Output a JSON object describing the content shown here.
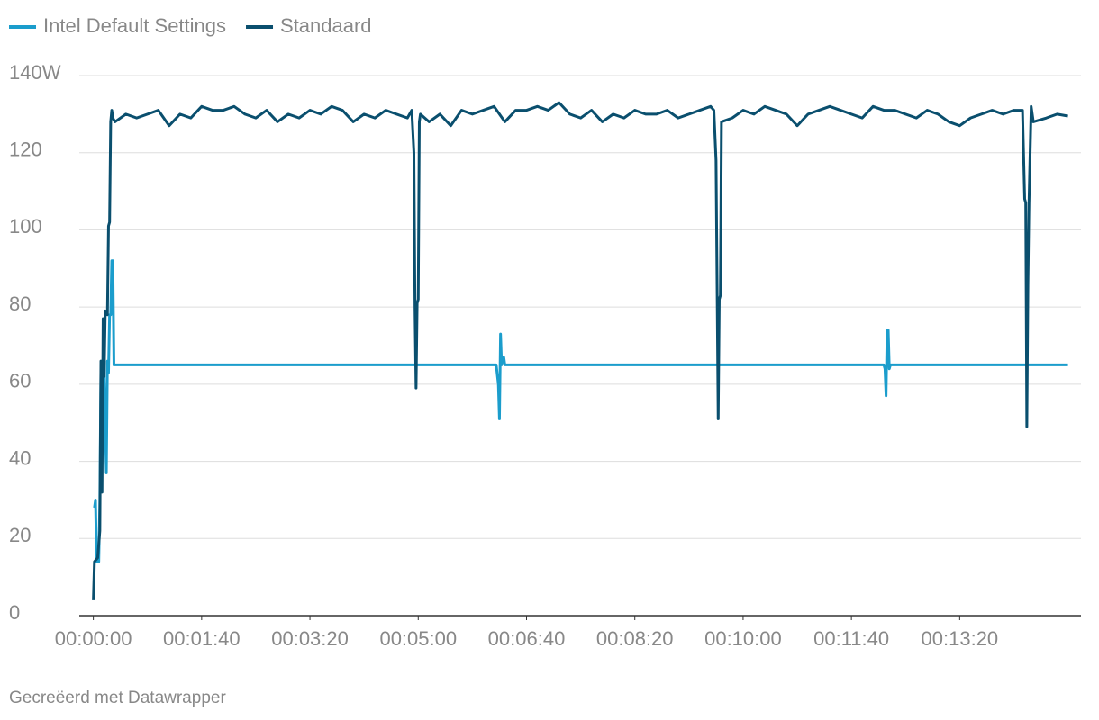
{
  "chart_data": {
    "type": "line",
    "footer": "Gecreëerd met Datawrapper",
    "legend": "top-left",
    "grid": true,
    "xlim": [
      -13,
      912
    ],
    "ylim": [
      0,
      140
    ],
    "xticks": [
      {
        "value": 0,
        "label": "00:00:00"
      },
      {
        "value": 100,
        "label": "00:01:40"
      },
      {
        "value": 200,
        "label": "00:03:20"
      },
      {
        "value": 300,
        "label": "00:05:00"
      },
      {
        "value": 400,
        "label": "00:06:40"
      },
      {
        "value": 500,
        "label": "00:08:20"
      },
      {
        "value": 600,
        "label": "00:10:00"
      },
      {
        "value": 700,
        "label": "00:11:40"
      },
      {
        "value": 800,
        "label": "00:13:20"
      }
    ],
    "yticks": [
      0,
      20,
      40,
      60,
      80,
      100,
      120,
      {
        "value": 140,
        "label": "140W"
      }
    ],
    "series": [
      {
        "name": "Intel Default Settings",
        "color": "#1b9dcc",
        "x": [
          1,
          2,
          3,
          5,
          6,
          7,
          8,
          10,
          12,
          13,
          14,
          15,
          16,
          17,
          18,
          19,
          100,
          200,
          300,
          372,
          374,
          375,
          376,
          377,
          378,
          379,
          380,
          500,
          600,
          730,
          731,
          732,
          733,
          734,
          735,
          736,
          800,
          900
        ],
        "values": [
          28,
          30,
          14,
          14,
          30,
          64,
          48,
          62,
          37,
          66,
          63,
          78,
          78,
          92,
          92,
          65,
          65,
          65,
          65,
          65,
          60,
          51,
          73,
          65,
          67,
          67,
          65,
          65,
          65,
          65,
          64,
          57,
          74,
          74,
          64,
          65,
          65,
          65
        ]
      },
      {
        "name": "Standaard",
        "color": "#0a4f6e",
        "x": [
          0,
          1,
          4,
          6,
          7,
          8,
          9,
          10,
          11,
          13,
          14,
          15,
          16,
          17,
          18,
          20,
          30,
          40,
          50,
          60,
          70,
          80,
          90,
          100,
          110,
          120,
          130,
          140,
          150,
          160,
          170,
          180,
          190,
          200,
          210,
          220,
          230,
          240,
          250,
          260,
          270,
          280,
          290,
          294,
          296,
          297,
          298,
          299,
          300,
          301,
          302,
          310,
          320,
          330,
          340,
          350,
          360,
          370,
          380,
          390,
          400,
          410,
          420,
          430,
          440,
          450,
          460,
          470,
          480,
          490,
          500,
          510,
          520,
          530,
          540,
          550,
          560,
          570,
          573,
          575,
          577,
          578,
          579,
          580,
          590,
          600,
          610,
          620,
          630,
          640,
          650,
          660,
          670,
          680,
          690,
          700,
          710,
          720,
          730,
          740,
          750,
          760,
          770,
          780,
          790,
          800,
          810,
          820,
          830,
          840,
          850,
          858,
          860,
          861,
          862,
          863,
          864,
          866,
          868,
          880,
          890,
          900
        ],
        "values": [
          4,
          14,
          15,
          22,
          66,
          32,
          77,
          62,
          79,
          78,
          101,
          102,
          128,
          131,
          129,
          128,
          130,
          129,
          130,
          131,
          127,
          130,
          129,
          132,
          131,
          131,
          132,
          130,
          129,
          131,
          128,
          130,
          129,
          131,
          130,
          132,
          131,
          128,
          130,
          129,
          131,
          130,
          129,
          131,
          120,
          80,
          59,
          81,
          82,
          128,
          130,
          128,
          130,
          127,
          131,
          130,
          131,
          132,
          128,
          131,
          131,
          132,
          131,
          133,
          130,
          129,
          131,
          128,
          130,
          129,
          131,
          130,
          130,
          131,
          129,
          130,
          131,
          132,
          131,
          118,
          51,
          82,
          83,
          128,
          129,
          131,
          130,
          132,
          131,
          130,
          127,
          130,
          131,
          132,
          131,
          130,
          129,
          132,
          131,
          131,
          130,
          129,
          131,
          130,
          128,
          127,
          129,
          130,
          131,
          130,
          131,
          131,
          108,
          107,
          49,
          86,
          107,
          132,
          128,
          129,
          130,
          129.5
        ]
      }
    ]
  }
}
